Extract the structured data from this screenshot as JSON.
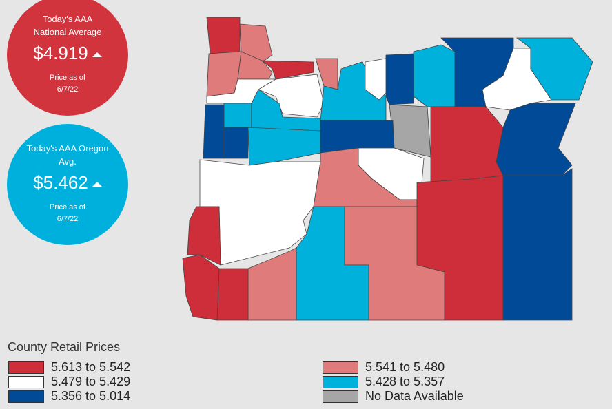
{
  "national": {
    "title": "Today's AAA National Average",
    "price": "$4.919",
    "note": "Price as of 6/7/22"
  },
  "oregon": {
    "title": "Today's AAA Oregon Avg.",
    "price": "$5.462",
    "note": "Price as of 6/7/22"
  },
  "legend": {
    "title": "County Retail Prices",
    "items": [
      "5.613 to 5.542",
      "5.479 to 5.429",
      "5.356 to 5.014",
      "5.541 to 5.480",
      "5.428 to 5.357",
      "No Data Available"
    ]
  }
}
